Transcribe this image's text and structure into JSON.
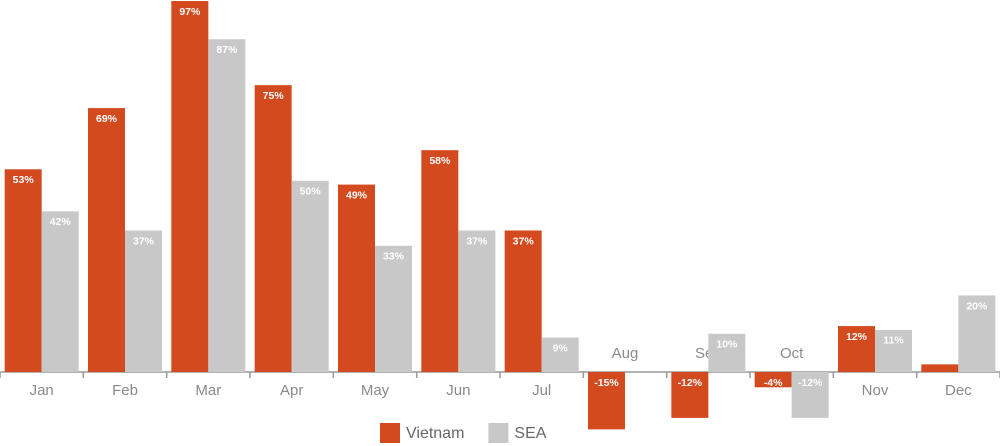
{
  "chart_data": {
    "type": "bar",
    "categories": [
      "Jan",
      "Feb",
      "Mar",
      "Apr",
      "May",
      "Jun",
      "Jul",
      "Aug",
      "Sep",
      "Oct",
      "Nov",
      "Dec"
    ],
    "series": [
      {
        "name": "Vietnam",
        "color": "#d44a1f",
        "values": [
          53,
          69,
          97,
          75,
          49,
          58,
          37,
          -15,
          -12,
          -4,
          12,
          2
        ],
        "value_labels": [
          "53%",
          "69%",
          "97%",
          "75%",
          "49%",
          "58%",
          "37%",
          "-15%",
          "-12%",
          "-4%",
          "12%",
          null
        ]
      },
      {
        "name": "SEA",
        "color": "#c8c8c8",
        "values": [
          42,
          37,
          87,
          50,
          33,
          37,
          9,
          null,
          10,
          -12,
          11,
          20
        ],
        "value_labels": [
          "42%",
          "37%",
          "87%",
          "50%",
          "33%",
          "37%",
          "9%",
          null,
          "10%",
          "-12%",
          "11%",
          "20%"
        ]
      }
    ],
    "ylim": [
      -15,
      97
    ]
  }
}
